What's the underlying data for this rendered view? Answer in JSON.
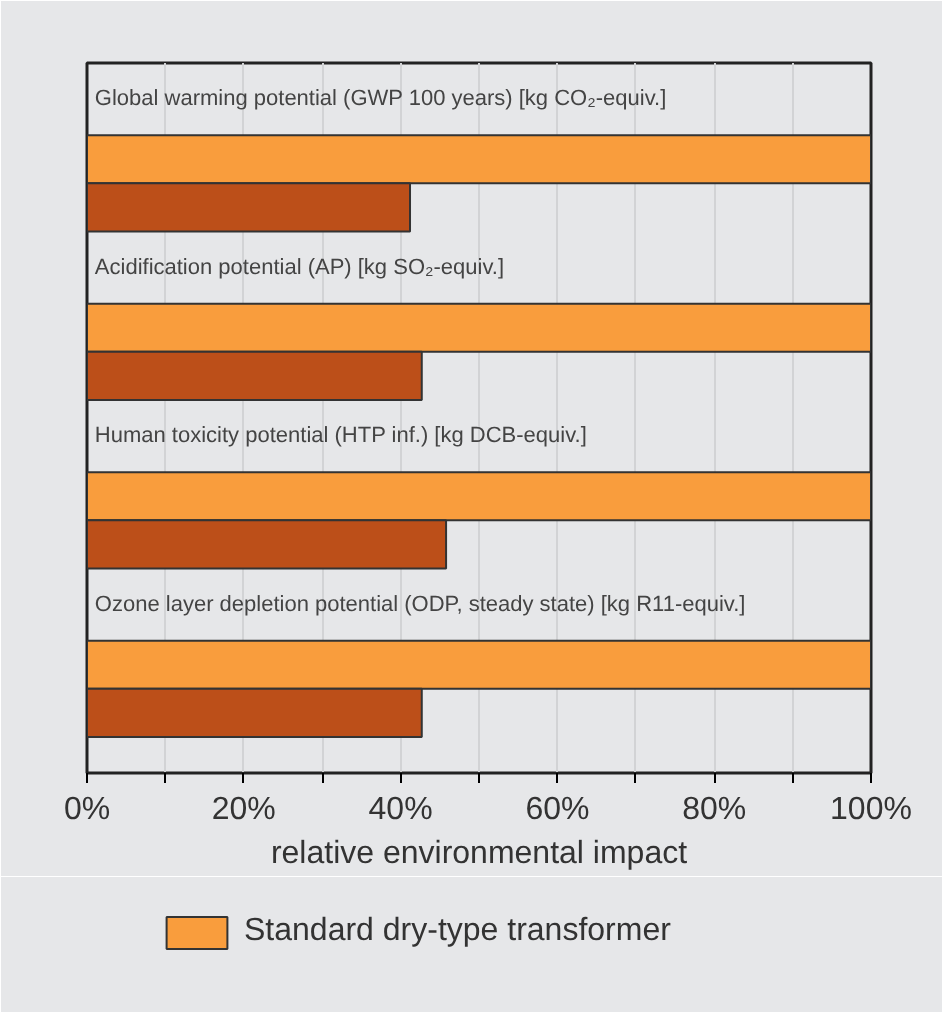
{
  "chart_data": {
    "type": "bar",
    "orientation": "horizontal",
    "categories": [
      "Global warming potential (GWP 100 years) [kg CO₂-equiv.]",
      "Acidification potential  (AP) [kg SO₂-equiv.]",
      "Human toxicity potential (HTP inf.) [kg DCB-equiv.]",
      "Ozone layer depletion potential  (ODP, steady state) [kg R11-equiv.]"
    ],
    "series": [
      {
        "name": "Standard dry-type transformer",
        "color": "#f99d3d",
        "values": [
          100,
          100,
          100,
          100
        ]
      },
      {
        "color": "#bc4f19",
        "values": [
          41.2,
          42.7,
          45.8,
          42.7
        ]
      }
    ],
    "xlabel": "relative environmental impact",
    "xlim": [
      0,
      100
    ],
    "xticks": [
      {
        "value": 0,
        "label": "0%"
      },
      {
        "value": 10,
        "label": null
      },
      {
        "value": 20,
        "label": "20%"
      },
      {
        "value": 30,
        "label": null
      },
      {
        "value": 40,
        "label": "40%"
      },
      {
        "value": 50,
        "label": null
      },
      {
        "value": 60,
        "label": "60%"
      },
      {
        "value": 70,
        "label": null
      },
      {
        "value": 80,
        "label": "80%"
      },
      {
        "value": 90,
        "label": null
      },
      {
        "value": 100,
        "label": "100%"
      }
    ],
    "grid": "x",
    "legend": "bottom",
    "tick_labels": "x"
  }
}
